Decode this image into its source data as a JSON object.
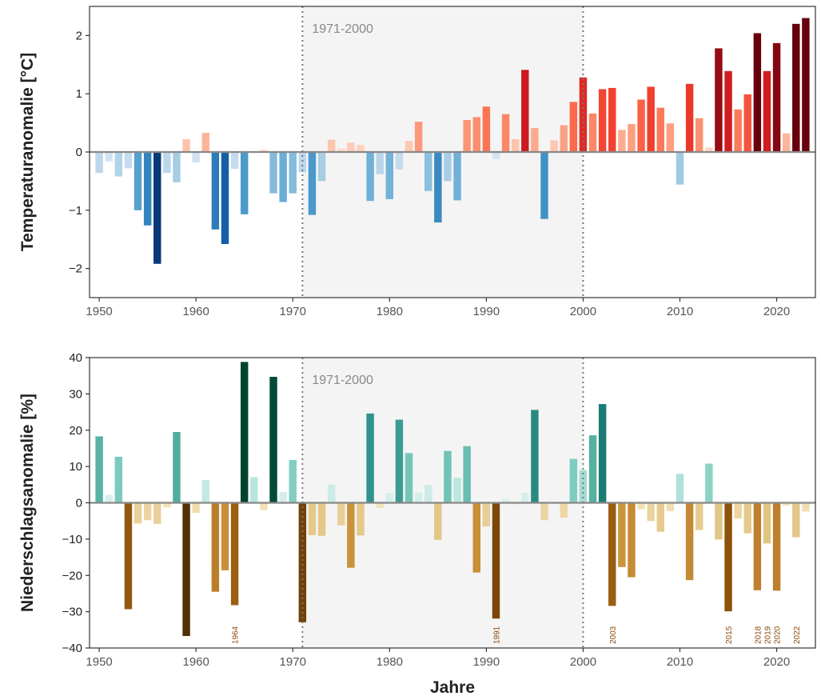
{
  "colors": {
    "temp_cold": "#08306b",
    "temp_warm": "#67000d",
    "prec_wet": "#00442e",
    "prec_dry": "#543005",
    "reference_shade": "#f4f4f4",
    "zero_line": "#888888"
  },
  "chart_data": [
    {
      "type": "bar",
      "ylabel": "Temperaturanomalie [°C]",
      "xlabel": "",
      "xlim": [
        1949,
        2024
      ],
      "ylim": [
        -2.5,
        2.5
      ],
      "yticks": [
        -2,
        -1,
        0,
        1,
        2
      ],
      "xticks": [
        1950,
        1960,
        1970,
        1980,
        1990,
        2000,
        2010,
        2020
      ],
      "reference_period": {
        "label": "1971-2000",
        "start": 1971,
        "end": 2000
      },
      "grid": false,
      "x": [
        1950,
        1951,
        1952,
        1953,
        1954,
        1955,
        1956,
        1957,
        1958,
        1959,
        1960,
        1961,
        1962,
        1963,
        1964,
        1965,
        1966,
        1967,
        1968,
        1969,
        1970,
        1971,
        1972,
        1973,
        1974,
        1975,
        1976,
        1977,
        1978,
        1979,
        1980,
        1981,
        1982,
        1983,
        1984,
        1985,
        1986,
        1987,
        1988,
        1989,
        1990,
        1991,
        1992,
        1993,
        1994,
        1995,
        1996,
        1997,
        1998,
        1999,
        2000,
        2001,
        2002,
        2003,
        2004,
        2005,
        2006,
        2007,
        2008,
        2009,
        2010,
        2011,
        2012,
        2013,
        2014,
        2015,
        2016,
        2017,
        2018,
        2019,
        2020,
        2021,
        2022,
        2023
      ],
      "values": [
        -0.36,
        -0.16,
        -0.42,
        -0.28,
        -1.0,
        -1.26,
        -1.92,
        -0.36,
        -0.52,
        0.22,
        -0.18,
        0.33,
        -1.33,
        -1.58,
        -0.29,
        -1.07,
        0.0,
        0.04,
        -0.71,
        -0.86,
        -0.71,
        -0.35,
        -1.08,
        -0.5,
        0.21,
        0.06,
        0.16,
        0.12,
        -0.84,
        -0.38,
        -0.81,
        -0.3,
        0.19,
        0.52,
        -0.67,
        -1.21,
        -0.5,
        -0.83,
        0.55,
        0.6,
        0.78,
        -0.12,
        0.65,
        0.22,
        1.41,
        0.41,
        -1.15,
        0.2,
        0.46,
        0.86,
        1.28,
        0.66,
        1.08,
        1.1,
        0.38,
        0.48,
        0.9,
        1.12,
        0.76,
        0.49,
        -0.56,
        1.17,
        0.58,
        0.08,
        1.78,
        1.39,
        0.73,
        0.99,
        2.04,
        1.39,
        1.87,
        0.32,
        2.2,
        2.3
      ]
    },
    {
      "type": "bar",
      "ylabel": "Niederschlagsanomalie [%]",
      "xlabel": "Jahre",
      "xlim": [
        1949,
        2024
      ],
      "ylim": [
        -40,
        40
      ],
      "yticks": [
        -40,
        -30,
        -20,
        -10,
        0,
        10,
        20,
        30,
        40
      ],
      "xticks": [
        1950,
        1960,
        1970,
        1980,
        1990,
        2000,
        2010,
        2020
      ],
      "reference_period": {
        "label": "1971-2000",
        "start": 1971,
        "end": 2000
      },
      "grid": false,
      "x": [
        1950,
        1951,
        1952,
        1953,
        1954,
        1955,
        1956,
        1957,
        1958,
        1959,
        1960,
        1961,
        1962,
        1963,
        1964,
        1965,
        1966,
        1967,
        1968,
        1969,
        1970,
        1971,
        1972,
        1973,
        1974,
        1975,
        1976,
        1977,
        1978,
        1979,
        1980,
        1981,
        1982,
        1983,
        1984,
        1985,
        1986,
        1987,
        1988,
        1989,
        1990,
        1991,
        1992,
        1993,
        1994,
        1995,
        1996,
        1997,
        1998,
        1999,
        2000,
        2001,
        2002,
        2003,
        2004,
        2005,
        2006,
        2007,
        2008,
        2009,
        2010,
        2011,
        2012,
        2013,
        2014,
        2015,
        2016,
        2017,
        2018,
        2019,
        2020,
        2021,
        2022,
        2023
      ],
      "values": [
        18.3,
        2.2,
        12.7,
        -29.3,
        -5.7,
        -4.8,
        -5.8,
        -1.3,
        19.5,
        -36.7,
        -2.8,
        6.3,
        -24.5,
        -18.6,
        -28.2,
        38.8,
        7.1,
        -2.0,
        34.7,
        3.0,
        11.8,
        -32.9,
        -8.9,
        -9.1,
        5.0,
        -6.2,
        -17.9,
        -9.0,
        24.6,
        -1.4,
        2.7,
        22.9,
        13.7,
        2.8,
        4.9,
        -10.2,
        14.3,
        6.9,
        15.6,
        -19.2,
        -6.5,
        -31.9,
        1.1,
        -0.4,
        2.8,
        25.6,
        -4.8,
        0.0,
        -4.1,
        12.1,
        9.0,
        18.6,
        27.2,
        -28.4,
        -17.7,
        -20.5,
        -1.8,
        -5.0,
        -8.0,
        -2.3,
        8.0,
        -21.3,
        -7.5,
        10.8,
        -10.1,
        -29.9,
        -4.3,
        -8.4,
        -24.1,
        -11.2,
        -24.2,
        -0.8,
        -9.5,
        -2.4
      ],
      "annotations": [
        "1964",
        "1991",
        "2003",
        "2015",
        "2018",
        "2019",
        "2020",
        "2022"
      ],
      "annotation_years": [
        1964,
        1991,
        2003,
        2015,
        2018,
        2019,
        2020,
        2022
      ]
    }
  ]
}
